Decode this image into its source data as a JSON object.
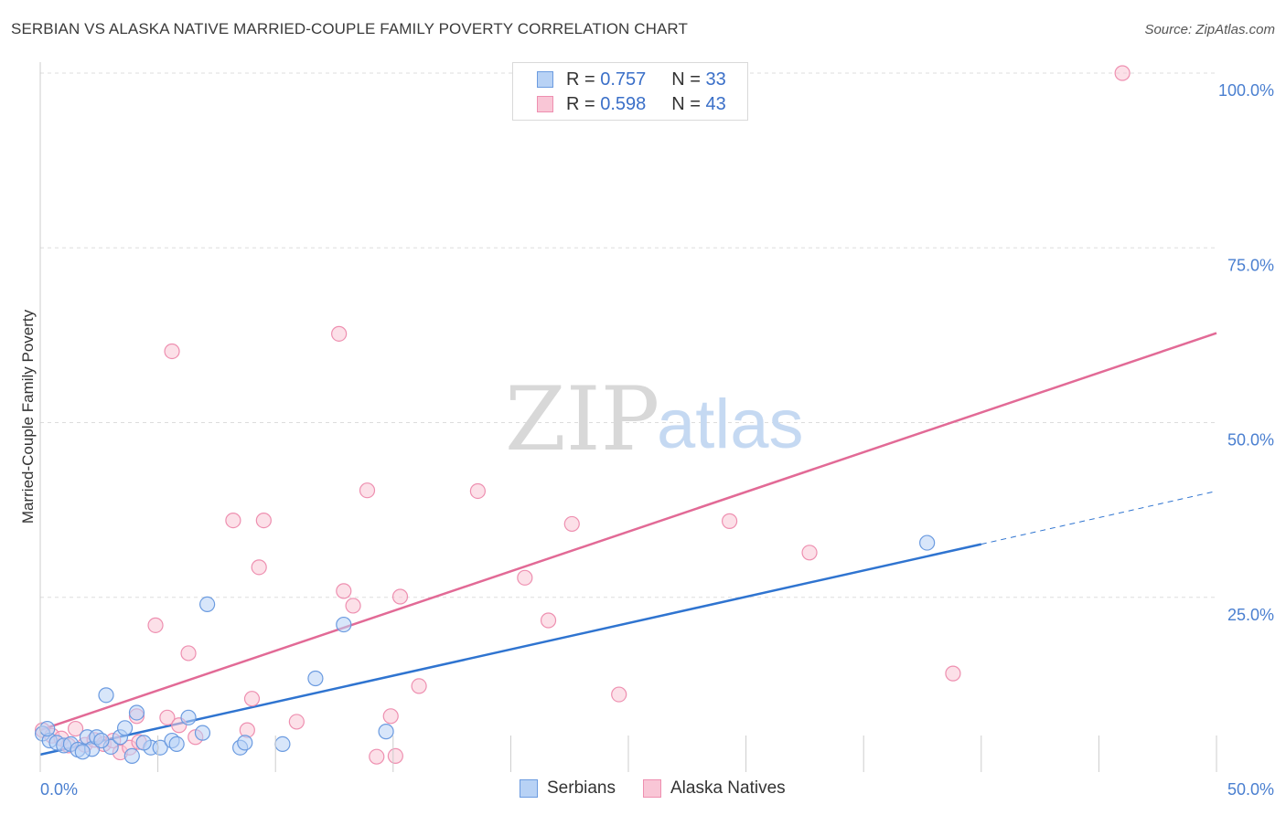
{
  "header": {
    "title": "SERBIAN VS ALASKA NATIVE MARRIED-COUPLE FAMILY POVERTY CORRELATION CHART",
    "source": "Source: ZipAtlas.com"
  },
  "legend": {
    "serbians": {
      "r_label": "R =",
      "r_value": "0.757",
      "n_label": "N =",
      "n_value": "33"
    },
    "alaska": {
      "r_label": "R =",
      "r_value": "0.598",
      "n_label": "N =",
      "n_value": "43"
    }
  },
  "bottom_legend": {
    "serbians": "Serbians",
    "alaska": "Alaska Natives"
  },
  "watermark": {
    "zip": "ZIP",
    "atlas": "atlas"
  },
  "colors": {
    "serbian_fill": "#b8d2f5",
    "serbian_stroke": "#6b9be0",
    "serbian_line": "#2f74d0",
    "alaska_fill": "#f9c6d6",
    "alaska_stroke": "#ee8fb0",
    "alaska_line": "#e26a96",
    "tick": "#4a7fd0",
    "grid": "#dddddd"
  },
  "chart_data": {
    "type": "scatter",
    "title": "SERBIAN VS ALASKA NATIVE MARRIED-COUPLE FAMILY POVERTY CORRELATION CHART",
    "xlabel": "",
    "ylabel": "Married-Couple Family Poverty",
    "xlim": [
      0,
      50
    ],
    "ylim": [
      0,
      100
    ],
    "x_tick_labels": [
      "0.0%",
      "50.0%"
    ],
    "y_tick_values": [
      25,
      50,
      75,
      100
    ],
    "y_tick_labels": [
      "25.0%",
      "50.0%",
      "75.0%",
      "100.0%"
    ],
    "grid": true,
    "series": [
      {
        "name": "Serbians",
        "r": 0.757,
        "n": 33,
        "points": [
          [
            0.1,
            5.5
          ],
          [
            0.4,
            4.5
          ],
          [
            0.7,
            4.2
          ],
          [
            1.0,
            3.8
          ],
          [
            1.3,
            4.0
          ],
          [
            1.6,
            3.2
          ],
          [
            2.0,
            5.0
          ],
          [
            2.2,
            3.3
          ],
          [
            2.4,
            5.0
          ],
          [
            2.8,
            11.0
          ],
          [
            3.0,
            3.6
          ],
          [
            3.4,
            5.0
          ],
          [
            3.6,
            6.3
          ],
          [
            3.9,
            2.3
          ],
          [
            4.1,
            8.5
          ],
          [
            4.7,
            3.5
          ],
          [
            5.1,
            3.5
          ],
          [
            5.6,
            4.5
          ],
          [
            5.8,
            4.0
          ],
          [
            6.3,
            7.8
          ],
          [
            6.9,
            5.6
          ],
          [
            7.1,
            24.0
          ],
          [
            8.5,
            3.5
          ],
          [
            8.7,
            4.2
          ],
          [
            10.3,
            4.0
          ],
          [
            11.7,
            13.4
          ],
          [
            12.9,
            21.1
          ],
          [
            14.7,
            5.8
          ],
          [
            37.7,
            32.8
          ],
          [
            0.3,
            6.2
          ],
          [
            1.8,
            2.9
          ],
          [
            4.4,
            4.2
          ],
          [
            2.6,
            4.5
          ]
        ],
        "trend": {
          "x0": 0,
          "y0": 2.5,
          "x1": 40,
          "y1": 32.6,
          "dashed_to_x": 50,
          "dashed_to_y": 40.2
        }
      },
      {
        "name": "Alaska Natives",
        "r": 0.598,
        "n": 43,
        "points": [
          [
            0.1,
            6.0
          ],
          [
            0.5,
            5.2
          ],
          [
            0.9,
            4.8
          ],
          [
            1.2,
            3.8
          ],
          [
            1.5,
            6.2
          ],
          [
            1.9,
            3.9
          ],
          [
            2.3,
            4.6
          ],
          [
            2.7,
            4.0
          ],
          [
            3.1,
            4.5
          ],
          [
            3.4,
            2.8
          ],
          [
            3.8,
            3.5
          ],
          [
            4.1,
            8.0
          ],
          [
            4.9,
            21.0
          ],
          [
            5.4,
            7.8
          ],
          [
            5.6,
            60.2
          ],
          [
            5.9,
            6.7
          ],
          [
            6.3,
            17.0
          ],
          [
            6.6,
            5.0
          ],
          [
            8.2,
            36.0
          ],
          [
            8.8,
            6.0
          ],
          [
            9.0,
            10.5
          ],
          [
            9.3,
            29.3
          ],
          [
            9.5,
            36.0
          ],
          [
            10.9,
            7.2
          ],
          [
            12.7,
            62.7
          ],
          [
            12.9,
            25.9
          ],
          [
            13.3,
            23.8
          ],
          [
            13.9,
            40.3
          ],
          [
            14.3,
            2.2
          ],
          [
            14.9,
            8.0
          ],
          [
            15.1,
            2.3
          ],
          [
            15.3,
            25.1
          ],
          [
            16.1,
            12.3
          ],
          [
            18.6,
            40.2
          ],
          [
            20.6,
            27.8
          ],
          [
            21.6,
            21.7
          ],
          [
            22.6,
            35.5
          ],
          [
            24.6,
            11.1
          ],
          [
            29.3,
            35.9
          ],
          [
            32.7,
            31.4
          ],
          [
            38.8,
            14.1
          ],
          [
            46.0,
            100.0
          ],
          [
            4.2,
            4.3
          ]
        ],
        "trend": {
          "x0": 0,
          "y0": 6.0,
          "x1": 50,
          "y1": 62.8
        }
      }
    ]
  }
}
